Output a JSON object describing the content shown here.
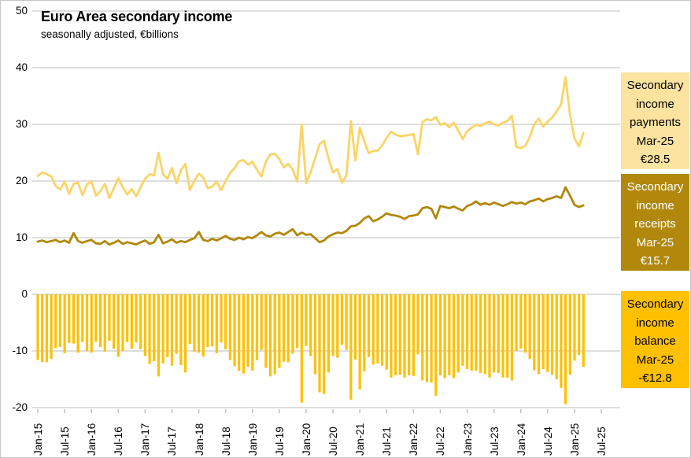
{
  "window": {
    "background": "#FFFFFF",
    "border_color": "#C6C6C6"
  },
  "header": {
    "title": "Euro Area secondary income",
    "subtitle": "seasonally adjusted, €billions"
  },
  "legend": [
    {
      "label": "Secondary income payments",
      "period": "Mar-25",
      "value": "€28.5",
      "bg": "#FCE39F",
      "fg": "#000000"
    },
    {
      "label": "Secondary income receipts",
      "period": "Mar-25",
      "value": "€15.7",
      "bg": "#B1880C",
      "fg": "#FFFFFF"
    },
    {
      "label": "Secondary income balance",
      "period": "Mar-25",
      "value": "-€12.8",
      "bg": "#FFC000",
      "fg": "#000000"
    }
  ],
  "chart_data": {
    "type": "combo",
    "frequency": "monthly",
    "start": "Jan-15",
    "end": "Mar-25",
    "title": "Euro Area secondary income",
    "subtitle": "seasonally adjusted, €billions",
    "ylim": [
      -20,
      50
    ],
    "grid": "horizontal",
    "grid_color": "#D9D9D9",
    "y_ticks": [
      50,
      40,
      30,
      20,
      10,
      0,
      -10,
      -20
    ],
    "x_tick_labels": [
      "Jan-15",
      "Jul-15",
      "Jan-16",
      "Jul-16",
      "Jan-17",
      "Jul-17",
      "Jan-18",
      "Jul-18",
      "Jan-19",
      "Jul-19",
      "Jan-20",
      "Jul-20",
      "Jan-21",
      "Jul-21",
      "Jan-22",
      "Jul-22",
      "Jan-23",
      "Jul-23",
      "Jan-24",
      "Jul-24",
      "Jan-25",
      "Jul-25"
    ],
    "series": [
      {
        "name": "Secondary income payments",
        "type": "line",
        "color": "#FBD466",
        "latest_label": "Mar-25 €28.5",
        "values": [
          20.9,
          21.5,
          21.2,
          20.8,
          19.1,
          18.5,
          19.9,
          17.7,
          19.5,
          19.7,
          17.5,
          19.4,
          19.9,
          17.4,
          18.2,
          19.5,
          17.0,
          18.7,
          20.5,
          18.9,
          17.6,
          18.6,
          17.3,
          18.9,
          20.4,
          21.2,
          21.0,
          25.0,
          21.2,
          20.4,
          22.3,
          19.6,
          21.9,
          23.0,
          18.4,
          20.0,
          21.3,
          20.6,
          18.7,
          19.0,
          19.9,
          18.4,
          20.0,
          21.4,
          22.3,
          23.5,
          23.7,
          22.9,
          23.4,
          22.0,
          20.8,
          23.4,
          24.7,
          24.8,
          23.9,
          22.4,
          23.0,
          22.0,
          19.9,
          30.0,
          19.6,
          21.5,
          24.0,
          26.5,
          27.1,
          24.0,
          21.5,
          22.1,
          19.7,
          21.0,
          30.6,
          23.6,
          29.4,
          27.0,
          24.9,
          25.3,
          25.4,
          26.3,
          27.6,
          28.7,
          28.2,
          27.9,
          28.0,
          28.1,
          28.3,
          24.7,
          30.4,
          30.9,
          30.7,
          31.3,
          29.9,
          30.2,
          29.5,
          30.3,
          28.9,
          27.4,
          28.8,
          29.4,
          29.9,
          29.7,
          30.2,
          30.5,
          30.0,
          29.8,
          30.3,
          30.6,
          31.5,
          26.0,
          25.8,
          26.2,
          27.8,
          30.0,
          31.0,
          29.6,
          30.5,
          31.2,
          32.3,
          33.5,
          38.3,
          31.6,
          27.5,
          26.1,
          28.5
        ]
      },
      {
        "name": "Secondary income receipts",
        "type": "line",
        "color": "#B1880C",
        "latest_label": "Mar-25 €15.7",
        "values": [
          9.3,
          9.5,
          9.2,
          9.4,
          9.6,
          9.2,
          9.5,
          9.1,
          10.8,
          9.4,
          9.1,
          9.4,
          9.6,
          9.0,
          8.9,
          9.4,
          8.8,
          9.1,
          9.5,
          8.9,
          9.2,
          9.0,
          8.8,
          9.2,
          9.5,
          8.9,
          9.2,
          10.5,
          9.0,
          9.3,
          9.7,
          9.1,
          9.4,
          9.2,
          9.6,
          9.9,
          11.0,
          9.6,
          9.4,
          9.8,
          9.5,
          9.9,
          10.3,
          9.8,
          9.6,
          10.0,
          9.7,
          10.1,
          9.9,
          10.4,
          11.0,
          10.4,
          10.2,
          10.7,
          10.9,
          10.5,
          11.0,
          11.5,
          10.4,
          10.9,
          10.5,
          10.6,
          9.9,
          9.2,
          9.5,
          10.2,
          10.6,
          10.9,
          10.8,
          11.2,
          12.0,
          12.1,
          12.6,
          13.4,
          13.8,
          12.9,
          13.2,
          13.7,
          14.3,
          14.0,
          13.9,
          13.7,
          13.3,
          13.8,
          13.9,
          14.1,
          15.2,
          15.4,
          15.1,
          13.4,
          15.6,
          15.4,
          15.2,
          15.5,
          15.1,
          14.8,
          15.6,
          15.9,
          16.4,
          15.8,
          16.1,
          15.8,
          16.2,
          15.9,
          15.6,
          15.9,
          16.3,
          16.0,
          16.2,
          15.9,
          16.4,
          16.6,
          16.9,
          16.4,
          16.8,
          17.0,
          17.3,
          17.0,
          18.9,
          17.4,
          15.8,
          15.4,
          15.7
        ]
      },
      {
        "name": "Secondary income balance",
        "type": "bar",
        "color": "#FFC000",
        "latest_label": "Mar-25 -€12.8",
        "values": [
          -11.6,
          -12.0,
          -12.0,
          -11.4,
          -9.5,
          -9.3,
          -10.4,
          -8.6,
          -8.7,
          -10.3,
          -8.4,
          -10.0,
          -10.3,
          -8.4,
          -9.3,
          -10.1,
          -8.2,
          -9.6,
          -11.0,
          -10.0,
          -8.4,
          -9.6,
          -8.5,
          -9.7,
          -10.9,
          -12.3,
          -11.8,
          -14.5,
          -12.2,
          -11.1,
          -12.6,
          -10.5,
          -12.5,
          -13.8,
          -8.8,
          -10.1,
          -10.3,
          -11.0,
          -9.3,
          -9.2,
          -10.4,
          -8.5,
          -9.7,
          -11.6,
          -12.7,
          -13.5,
          -14.0,
          -12.8,
          -13.5,
          -11.6,
          -9.8,
          -13.0,
          -14.5,
          -14.1,
          -13.0,
          -11.9,
          -12.0,
          -10.5,
          -9.5,
          -19.1,
          -9.1,
          -10.9,
          -14.1,
          -17.3,
          -17.6,
          -13.8,
          -10.9,
          -11.2,
          -8.9,
          -9.8,
          -18.6,
          -11.5,
          -16.8,
          -13.6,
          -11.1,
          -12.4,
          -12.2,
          -12.6,
          -13.3,
          -14.7,
          -14.3,
          -14.2,
          -14.7,
          -14.3,
          -14.4,
          -10.6,
          -15.2,
          -15.5,
          -15.6,
          -17.9,
          -14.3,
          -14.8,
          -14.3,
          -14.8,
          -13.8,
          -12.6,
          -13.2,
          -13.5,
          -13.5,
          -13.9,
          -14.1,
          -14.7,
          -13.8,
          -13.9,
          -14.7,
          -14.7,
          -15.2,
          -10.0,
          -9.6,
          -10.3,
          -11.4,
          -13.4,
          -14.1,
          -13.2,
          -13.7,
          -14.2,
          -15.0,
          -16.5,
          -19.4,
          -14.2,
          -11.7,
          -10.7,
          -12.8
        ]
      }
    ]
  }
}
